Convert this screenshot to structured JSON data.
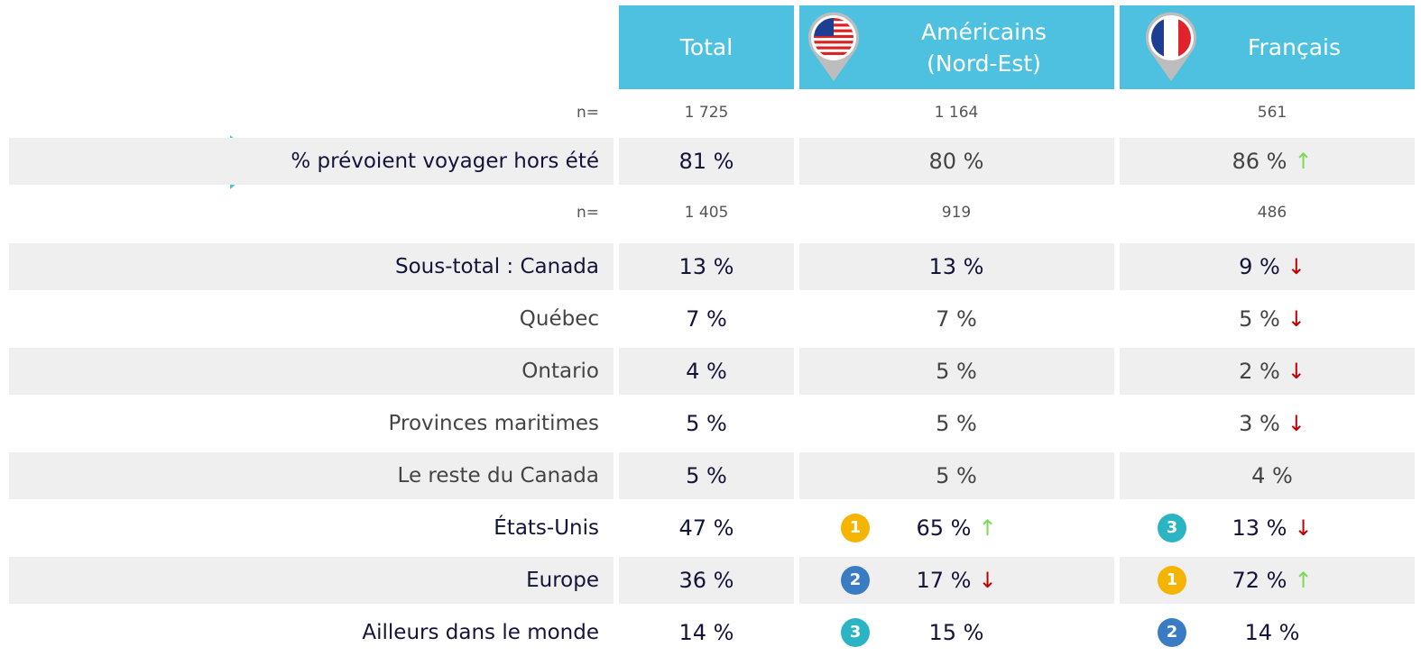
{
  "header": {
    "columns": [
      {
        "lines": [
          "Total"
        ]
      },
      {
        "lines": [
          "Américains",
          "(Nord-Est)"
        ]
      },
      {
        "lines": [
          "Français"
        ]
      }
    ]
  },
  "rows": [
    {
      "label": "n=",
      "kind": "n",
      "shaded": false,
      "cells": [
        {
          "text": "1 725"
        },
        {
          "text": "1 164"
        },
        {
          "text": "561"
        }
      ]
    },
    {
      "label": "% prévoient voyager hors été",
      "kind": "strong",
      "shaded": true,
      "pointer": true,
      "cells": [
        {
          "text": "81 %"
        },
        {
          "text": "80 %",
          "light": true
        },
        {
          "text": "86 %",
          "light": true,
          "arrow": {
            "glyph": "↑",
            "color": "#7ed957"
          }
        }
      ]
    },
    {
      "label": "n=",
      "kind": "n",
      "shaded": false,
      "cells": [
        {
          "text": "1 405"
        },
        {
          "text": "919"
        },
        {
          "text": "486"
        }
      ]
    },
    {
      "label": "Sous-total : Canada",
      "kind": "strong",
      "shaded": true,
      "cells": [
        {
          "text": "13 %"
        },
        {
          "text": "13 %"
        },
        {
          "text": "9 %",
          "arrow": {
            "glyph": "↓",
            "color": "#c00000"
          }
        }
      ]
    },
    {
      "label": "Québec",
      "kind": "light",
      "shaded": false,
      "cells": [
        {
          "text": "7 %"
        },
        {
          "text": "7 %",
          "light": true
        },
        {
          "text": "5 %",
          "light": true,
          "arrow": {
            "glyph": "↓",
            "color": "#c00000"
          }
        }
      ]
    },
    {
      "label": "Ontario",
      "kind": "light",
      "shaded": true,
      "cells": [
        {
          "text": "4 %"
        },
        {
          "text": "5 %",
          "light": true
        },
        {
          "text": "2 %",
          "light": true,
          "arrow": {
            "glyph": "↓",
            "color": "#c00000"
          }
        }
      ]
    },
    {
      "label": "Provinces maritimes",
      "kind": "light",
      "shaded": false,
      "cells": [
        {
          "text": "5 %"
        },
        {
          "text": "5 %",
          "light": true
        },
        {
          "text": "3 %",
          "light": true,
          "arrow": {
            "glyph": "↓",
            "color": "#c00000"
          }
        }
      ]
    },
    {
      "label": "Le reste du Canada",
      "kind": "light",
      "shaded": true,
      "cells": [
        {
          "text": "5 %"
        },
        {
          "text": "5 %",
          "light": true
        },
        {
          "text": "4 %",
          "light": true
        }
      ]
    },
    {
      "label": "États-Unis",
      "kind": "strong",
      "shaded": false,
      "cells": [
        {
          "text": "47 %"
        },
        {
          "text": "65 %",
          "arrow": {
            "glyph": "↑",
            "color": "#7ed957"
          },
          "rank": {
            "label": "1",
            "color": "#f5b400"
          }
        },
        {
          "text": "13 %",
          "arrow": {
            "glyph": "↓",
            "color": "#c00000"
          },
          "rank": {
            "label": "3",
            "color": "#2bb5c4"
          }
        }
      ]
    },
    {
      "label": "Europe",
      "kind": "strong",
      "shaded": true,
      "cells": [
        {
          "text": "36 %"
        },
        {
          "text": "17 %",
          "arrow": {
            "glyph": "↓",
            "color": "#c00000"
          },
          "rank": {
            "label": "2",
            "color": "#3a7cc4"
          }
        },
        {
          "text": "72 %",
          "arrow": {
            "glyph": "↑",
            "color": "#7ed957"
          },
          "rank": {
            "label": "1",
            "color": "#f5b400"
          }
        }
      ]
    },
    {
      "label": "Ailleurs dans le monde",
      "kind": "strong",
      "shaded": false,
      "cells": [
        {
          "text": "14 %"
        },
        {
          "text": "15 %",
          "rank": {
            "label": "3",
            "color": "#2bb5c4"
          }
        },
        {
          "text": "14 %",
          "rank": {
            "label": "2",
            "color": "#3a7cc4"
          }
        }
      ]
    }
  ]
}
